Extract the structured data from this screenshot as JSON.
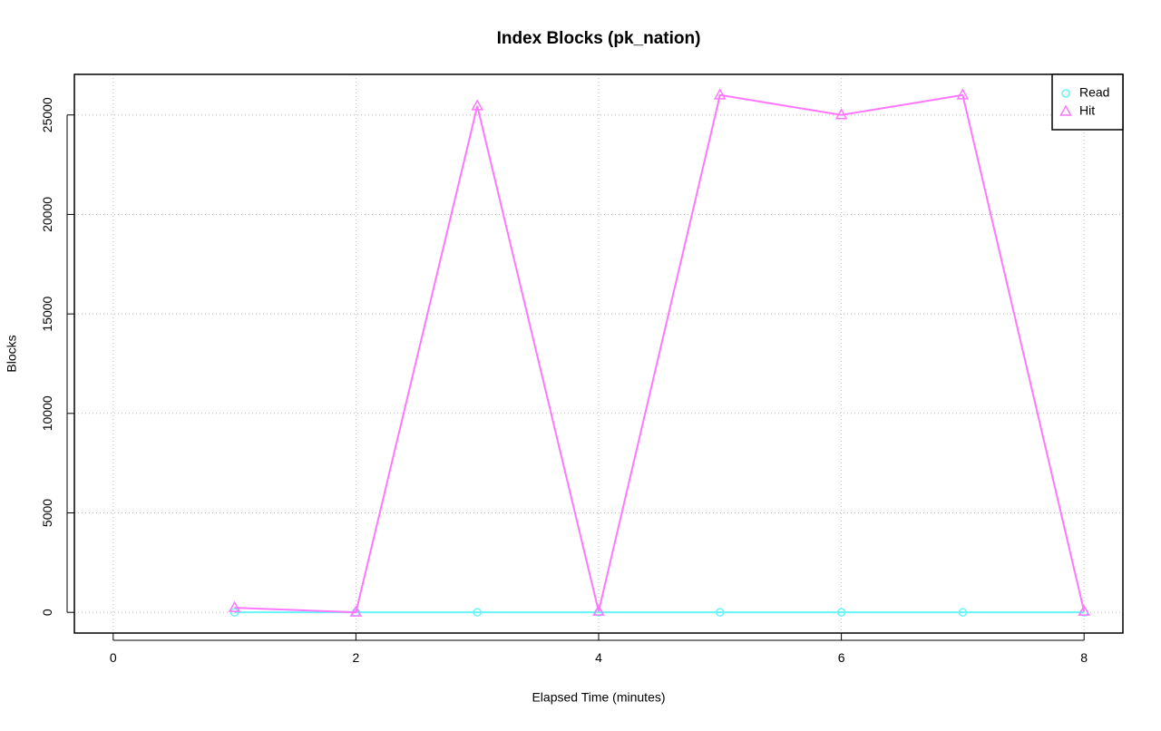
{
  "chart_data": {
    "type": "line",
    "title": "Index Blocks (pk_nation)",
    "x_label": "Elapsed Time (minutes)",
    "y_label": "Blocks",
    "x": [
      1,
      2,
      3,
      4,
      5,
      6,
      7,
      8
    ],
    "series": [
      {
        "name": "Read",
        "color": "#66f5f5",
        "marker": "circle",
        "values": [
          0,
          0,
          0,
          0,
          0,
          0,
          0,
          0
        ]
      },
      {
        "name": "Hit",
        "color": "#ff77ff",
        "marker": "triangle",
        "values": [
          230,
          0,
          25450,
          50,
          26000,
          25000,
          26000,
          50
        ]
      }
    ],
    "xlim": [
      -0.32,
      8.32
    ],
    "xticks": [
      0,
      2,
      4,
      6,
      8
    ],
    "ylim": [
      -1040,
      27040
    ],
    "yticks": [
      0,
      5000,
      10000,
      15000,
      20000,
      25000
    ],
    "grid": true,
    "legend": "top-right"
  }
}
